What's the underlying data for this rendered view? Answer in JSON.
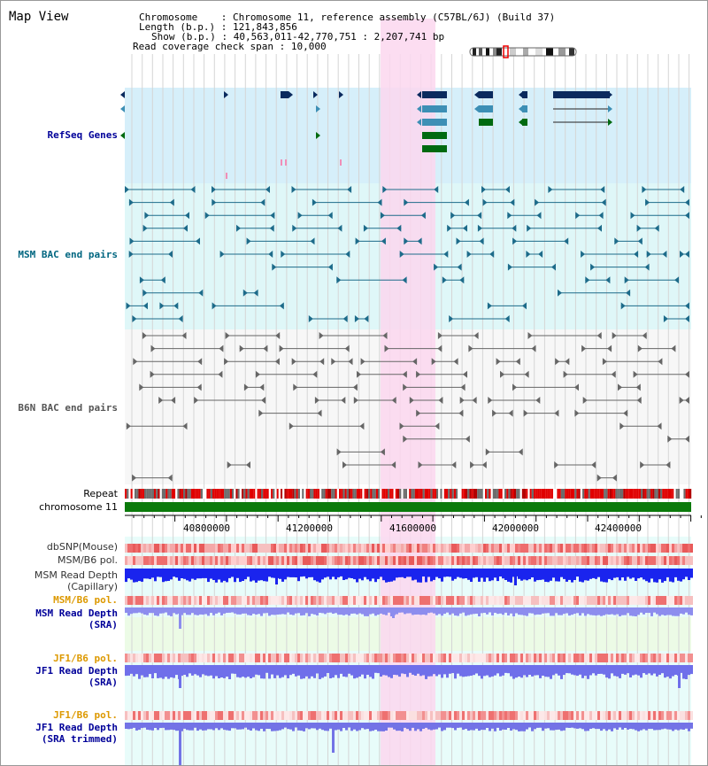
{
  "page": {
    "title": "Map View"
  },
  "info": {
    "chromosome_key": "Chromosome",
    "chromosome_value": "Chromosome 11, reference assembly (C57BL/6J) (Build 37)",
    "length_key": "Length (b.p.)",
    "length_value": "121,843,856",
    "show_key": "Show (b.p.)",
    "show_value": "40,563,011-42,770,751 : 2,207,741 bp",
    "span_key": "Read coverage check span",
    "span_value": "10,000"
  },
  "tracks": {
    "refseq": "RefSeq Genes",
    "msm_bac": "MSM BAC end pairs",
    "b6n_bac": "B6N BAC end pairs",
    "repeat": "Repeat",
    "chromosome": "chromosome 11",
    "dbsnp": "dbSNP(Mouse)",
    "msm_b6_pol": "MSM/B6 pol.",
    "msm_depth_cap_1": "MSM Read Depth",
    "msm_depth_cap_2": "(Capillary)",
    "msm_b6_pol2": "MSM/B6 pol.",
    "msm_depth_sra_1": "MSM Read Depth",
    "msm_depth_sra_2": "(SRA)",
    "jf1_pol": "JF1/B6 pol.",
    "jf1_depth_1": "JF1 Read Depth",
    "jf1_depth_2": "(SRA)",
    "jf1_pol2": "JF1/B6 pol.",
    "jf1_trim_1": "JF1 Read Depth",
    "jf1_trim_2": "(SRA trimmed)"
  },
  "axis": {
    "ticks": [
      "40800000",
      "41200000",
      "41600000",
      "42000000",
      "42400000"
    ]
  },
  "colors": {
    "refseq_label": "#000099",
    "msm_label": "#006680",
    "b6n_label": "#555555",
    "pol_label": "#dd9900",
    "depth_label": "#000099",
    "highlight": "#fbd7ef"
  }
}
